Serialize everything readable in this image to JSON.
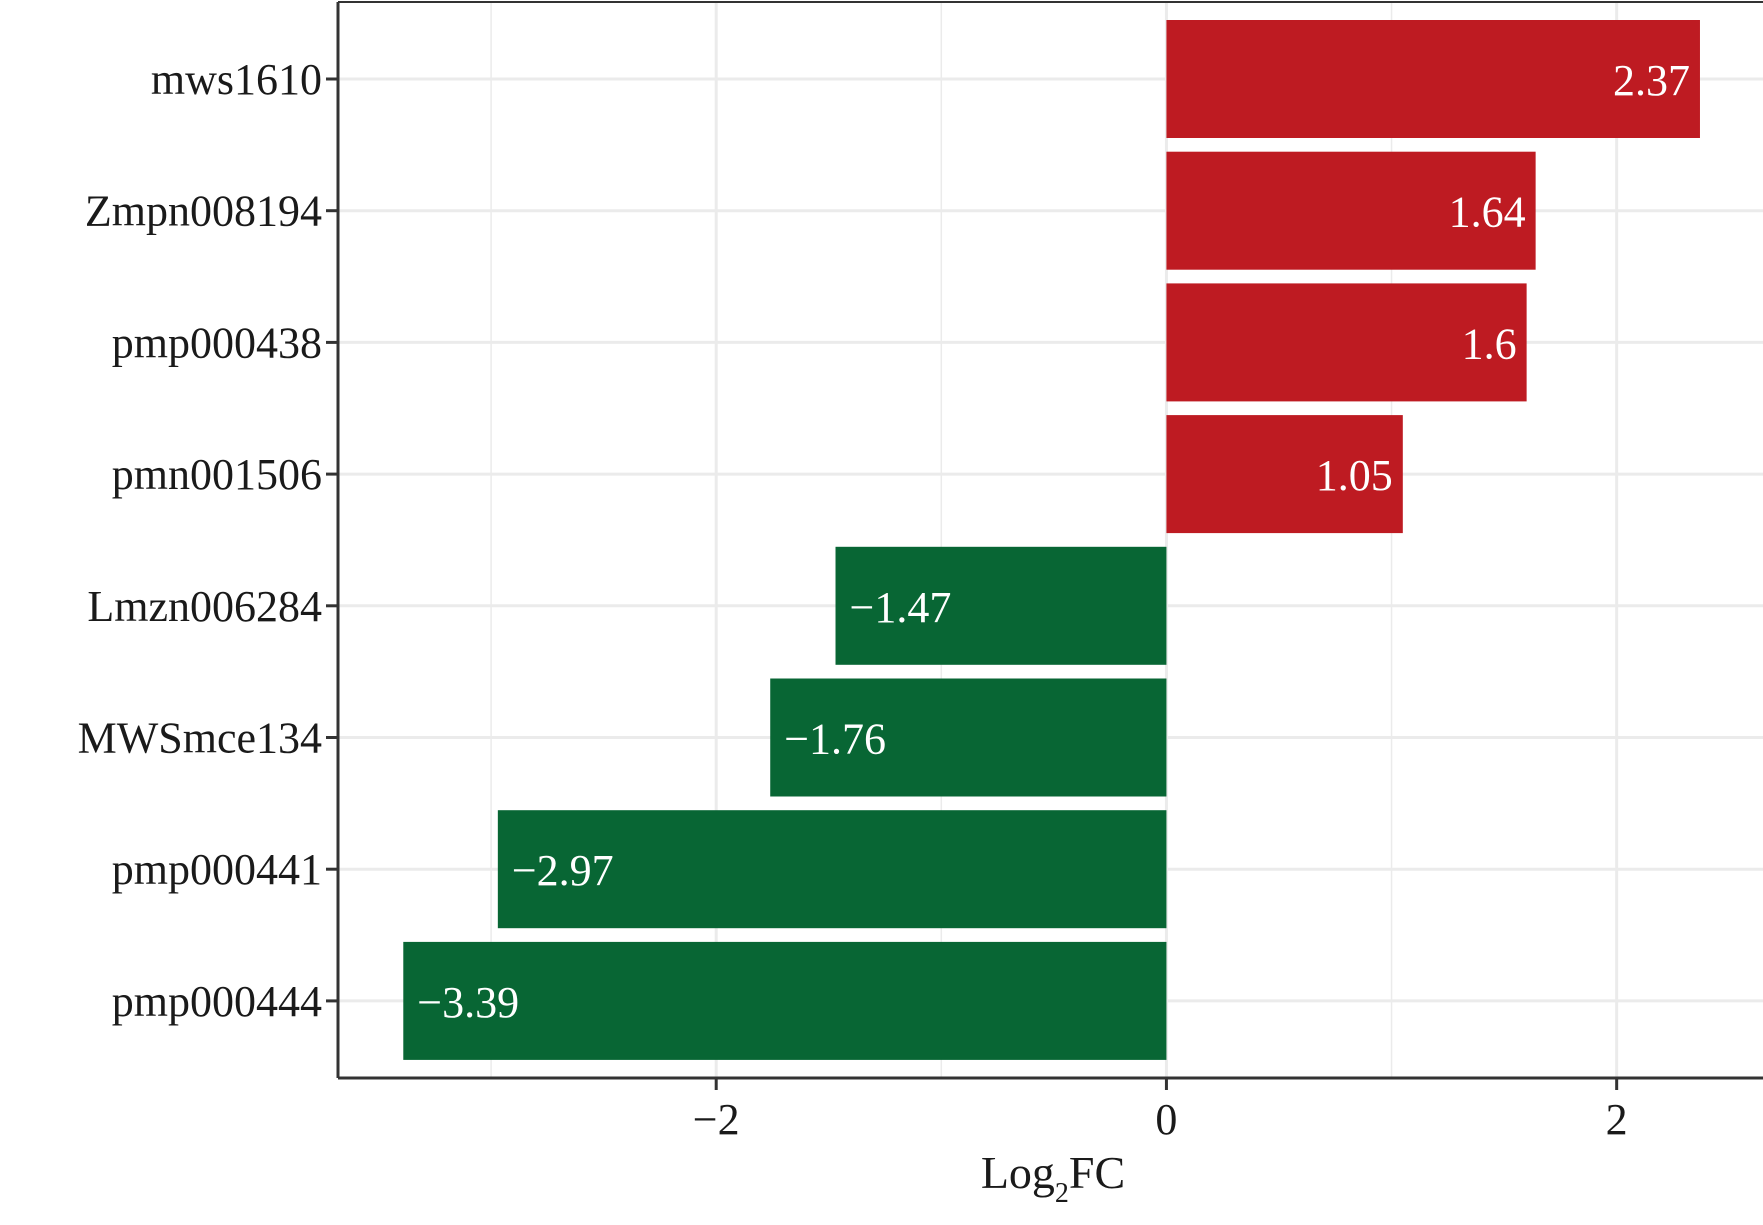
{
  "chart_data": {
    "type": "bar",
    "orientation": "horizontal",
    "categories": [
      "mws1610",
      "Zmpn008194",
      "pmp000438",
      "pmn001506",
      "Lmzn006284",
      "MWSmce134",
      "pmp000441",
      "pmp000444"
    ],
    "values": [
      2.37,
      1.64,
      1.6,
      1.05,
      -1.47,
      -1.76,
      -2.97,
      -3.39
    ],
    "value_labels": [
      "2.37",
      "1.64",
      "1.6",
      "1.05",
      "−1.47",
      "−1.76",
      "−2.97",
      "−3.39"
    ],
    "x_ticks": [
      -2,
      0,
      2
    ],
    "x_tick_labels": [
      "−2",
      "0",
      "2"
    ],
    "xlim": [
      -3.68,
      2.65
    ],
    "xlabel_main": "Log",
    "xlabel_sub": "2",
    "xlabel_suffix": "FC",
    "grid": true,
    "legend": "none"
  },
  "colors": {
    "positive": "#BE1B22",
    "negative": "#086634",
    "grid": "#EBEBEB",
    "axis": "#333333"
  }
}
